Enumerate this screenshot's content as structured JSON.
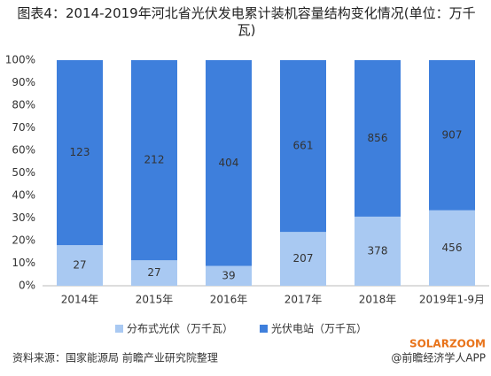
{
  "chart_data": {
    "type": "stacked_percent_bar",
    "title": "图表4：2014-2019年河北省光伏发电累计装机容量结构变化情况(单位：万千瓦)",
    "categories": [
      "2014年",
      "2015年",
      "2016年",
      "2017年",
      "2018年",
      "2019年1-9月"
    ],
    "series": [
      {
        "name": "分布式光伏（万千瓦）",
        "color": "#a9c9f2",
        "values": [
          27,
          27,
          39,
          207,
          378,
          456
        ]
      },
      {
        "name": "光伏电站（万千瓦）",
        "color": "#3e7fdc",
        "values": [
          123,
          212,
          404,
          661,
          856,
          907
        ]
      }
    ],
    "ylim": [
      0,
      100
    ],
    "yticks": [
      {
        "value": 0,
        "label": "0%"
      },
      {
        "value": 10,
        "label": "10%"
      },
      {
        "value": 20,
        "label": "20%"
      },
      {
        "value": 30,
        "label": "30%"
      },
      {
        "value": 40,
        "label": "40%"
      },
      {
        "value": 50,
        "label": "50%"
      },
      {
        "value": 60,
        "label": "60%"
      },
      {
        "value": 70,
        "label": "70%"
      },
      {
        "value": 80,
        "label": "80%"
      },
      {
        "value": 90,
        "label": "90%"
      },
      {
        "value": 100,
        "label": "100%"
      }
    ],
    "grid": false,
    "source": "资料来源：国家能源局 前瞻产业研究院整理",
    "logo": "SOLARZOOM",
    "credit": "@前瞻经济学人APP"
  }
}
